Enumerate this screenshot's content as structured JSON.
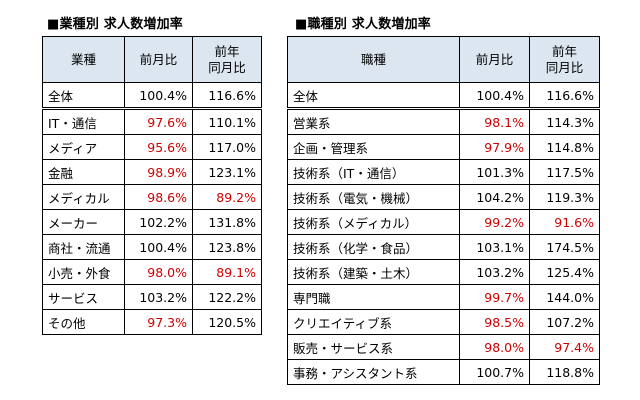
{
  "industry": {
    "title": "■業種別 求人数増加率",
    "headers": [
      "業種",
      "前月比",
      "前年\n同月比"
    ],
    "rows": [
      [
        "全体",
        "100.4%",
        "116.6%",
        false,
        false
      ],
      [
        "IT・通信",
        "97.6%",
        "110.1%",
        true,
        false
      ],
      [
        "メディア",
        "95.6%",
        "117.0%",
        true,
        false
      ],
      [
        "金融",
        "98.9%",
        "123.1%",
        true,
        false
      ],
      [
        "メディカル",
        "98.6%",
        "89.2%",
        true,
        true
      ],
      [
        "メーカー",
        "102.2%",
        "131.8%",
        false,
        false
      ],
      [
        "商社・流通",
        "100.4%",
        "123.8%",
        false,
        false
      ],
      [
        "小売・外食",
        "98.0%",
        "89.1%",
        true,
        true
      ],
      [
        "サービス",
        "103.2%",
        "122.2%",
        false,
        false
      ],
      [
        "その他",
        "97.3%",
        "120.5%",
        true,
        false
      ]
    ]
  },
  "job": {
    "title": "■職種別 求人数増加率",
    "headers": [
      "職種",
      "前月比",
      "前年\n同月比"
    ],
    "rows": [
      [
        "全体",
        "100.4%",
        "116.6%",
        false,
        false
      ],
      [
        "営業系",
        "98.1%",
        "114.3%",
        true,
        false
      ],
      [
        "企画・管理系",
        "97.9%",
        "114.8%",
        true,
        false
      ],
      [
        "技術系（IT・通信）",
        "101.3%",
        "117.5%",
        false,
        false
      ],
      [
        "技術系（電気・機械）",
        "104.2%",
        "119.3%",
        false,
        false
      ],
      [
        "技術系（メディカル）",
        "99.2%",
        "91.6%",
        true,
        true
      ],
      [
        "技術系（化学・食品）",
        "103.1%",
        "174.5%",
        false,
        false
      ],
      [
        "技術系（建築・土木）",
        "103.2%",
        "125.4%",
        false,
        false
      ],
      [
        "専門職",
        "99.7%",
        "144.0%",
        true,
        false
      ],
      [
        "クリエイティブ系",
        "98.5%",
        "107.2%",
        true,
        false
      ],
      [
        "販売・サービス系",
        "98.0%",
        "97.4%",
        true,
        true
      ],
      [
        "事務・アシスタント系",
        "100.7%",
        "118.8%",
        false,
        false
      ]
    ]
  },
  "colors": {
    "header_bg": "#dce6f1",
    "negative_text": "#cc0000"
  }
}
